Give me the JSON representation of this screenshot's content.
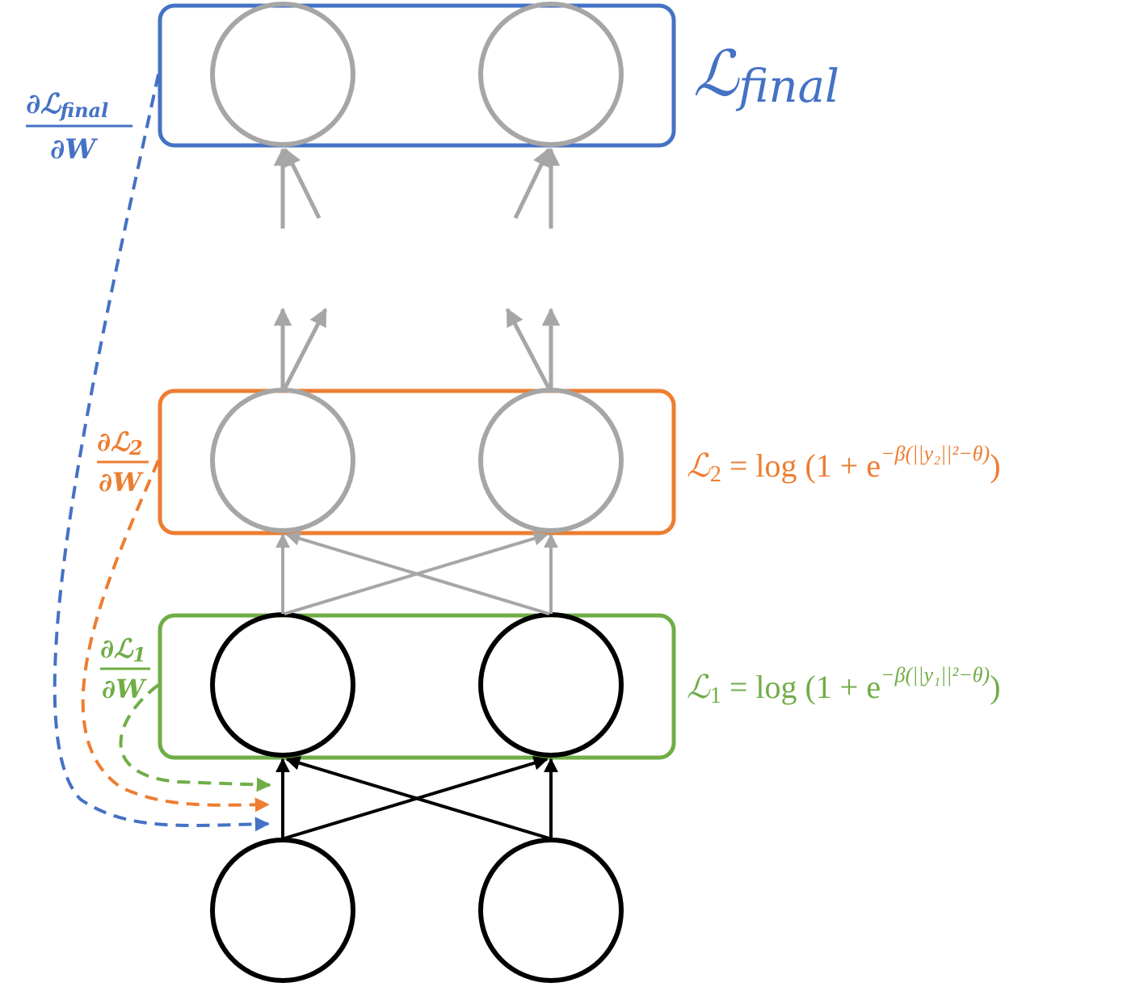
{
  "colors": {
    "blue": "#4472c4",
    "orange": "#ed7d31",
    "green": "#70ad47",
    "gray": "#a6a6a6",
    "black": "#000000"
  },
  "layers": {
    "final": {
      "loss_main": "ℒ",
      "loss_sub": "final",
      "border_color": "blue"
    },
    "layer2": {
      "loss_lhs": "ℒ",
      "loss_sub": "2",
      "loss_rhs": " = log (1 + e",
      "exponent": "−β(||y₂||²−θ)",
      "close": ")",
      "border_color": "orange"
    },
    "layer1": {
      "loss_lhs": "ℒ",
      "loss_sub": "1",
      "loss_rhs": " = log (1 + e",
      "exponent": "−β(||y₁||²−θ)",
      "close": ")",
      "border_color": "green"
    }
  },
  "gradients": {
    "final": {
      "numerator": "∂ℒ",
      "numerator_sub": "final",
      "denominator": "∂W"
    },
    "layer2": {
      "numerator": "∂ℒ",
      "numerator_sub": "2",
      "denominator": "∂W"
    },
    "layer1": {
      "numerator": "∂ℒ",
      "numerator_sub": "1",
      "denominator": "∂W"
    }
  }
}
